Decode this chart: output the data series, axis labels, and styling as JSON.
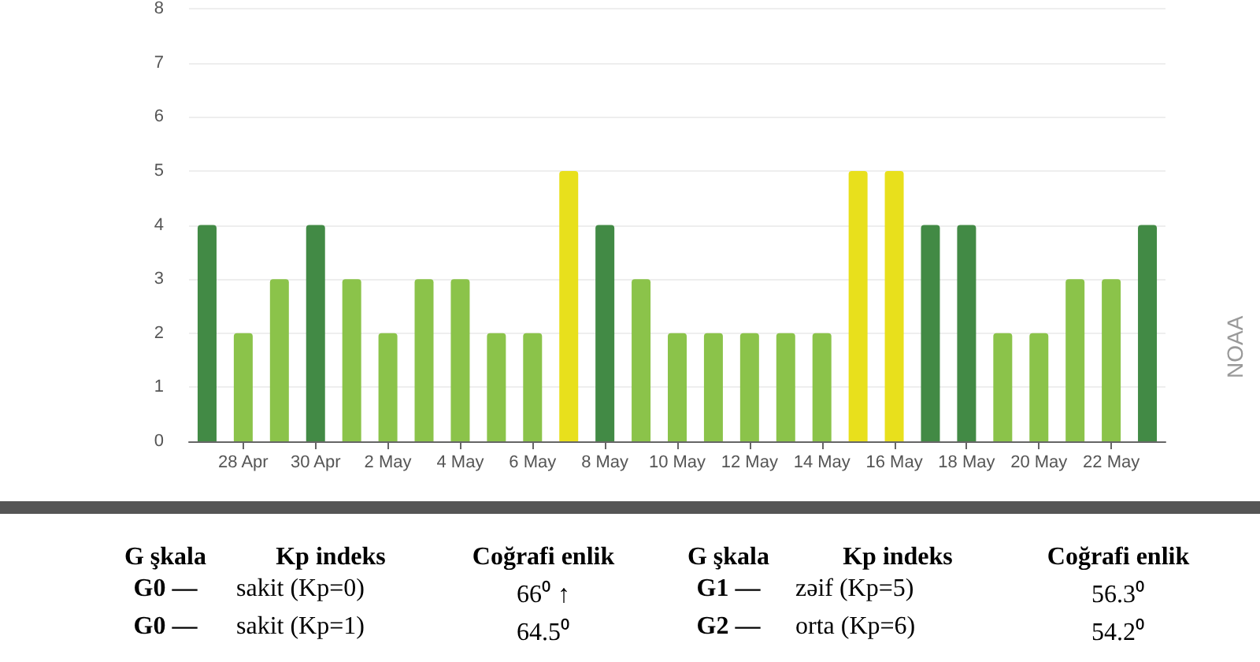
{
  "chart_data": {
    "type": "bar",
    "categories": [
      null,
      "28 Apr",
      null,
      "30 Apr",
      null,
      "2 May",
      null,
      "4 May",
      null,
      "6 May",
      null,
      "8 May",
      null,
      "10 May",
      null,
      "12 May",
      null,
      "14 May",
      null,
      "16 May",
      null,
      "18 May",
      null,
      "20 May",
      null,
      "22 May",
      null
    ],
    "values": [
      4,
      2,
      3,
      4,
      3,
      2,
      3,
      3,
      2,
      2,
      5,
      4,
      3,
      2,
      2,
      2,
      2,
      2,
      5,
      5,
      4,
      4,
      2,
      2,
      3,
      3,
      4
    ],
    "colors": [
      "#428a45",
      "#8bc34a",
      "#8bc34a",
      "#428a45",
      "#8bc34a",
      "#8bc34a",
      "#8bc34a",
      "#8bc34a",
      "#8bc34a",
      "#8bc34a",
      "#e8e01c",
      "#428a45",
      "#8bc34a",
      "#8bc34a",
      "#8bc34a",
      "#8bc34a",
      "#8bc34a",
      "#8bc34a",
      "#e8e01c",
      "#e8e01c",
      "#428a45",
      "#428a45",
      "#8bc34a",
      "#8bc34a",
      "#8bc34a",
      "#8bc34a",
      "#428a45"
    ],
    "ylim": [
      0,
      8
    ],
    "yticks": [
      0,
      1,
      2,
      3,
      4,
      5,
      6,
      7,
      8
    ],
    "grid": "y",
    "annotations": [
      "NOAA",
      "G şkala",
      "Kp indeks",
      "Coğrafi enlik",
      "G şkala",
      "Kp indeks",
      "Coğrafi enlik",
      "G0 —",
      "sakit (Kp=0)",
      "66⁰ ↑",
      "G1 —",
      "zəif (Kp=5)",
      "56.3⁰",
      "G0 —",
      "sakit (Kp=1)",
      "64.5⁰",
      "G2 —",
      "orta (Kp=6)",
      "54.2⁰"
    ]
  }
}
